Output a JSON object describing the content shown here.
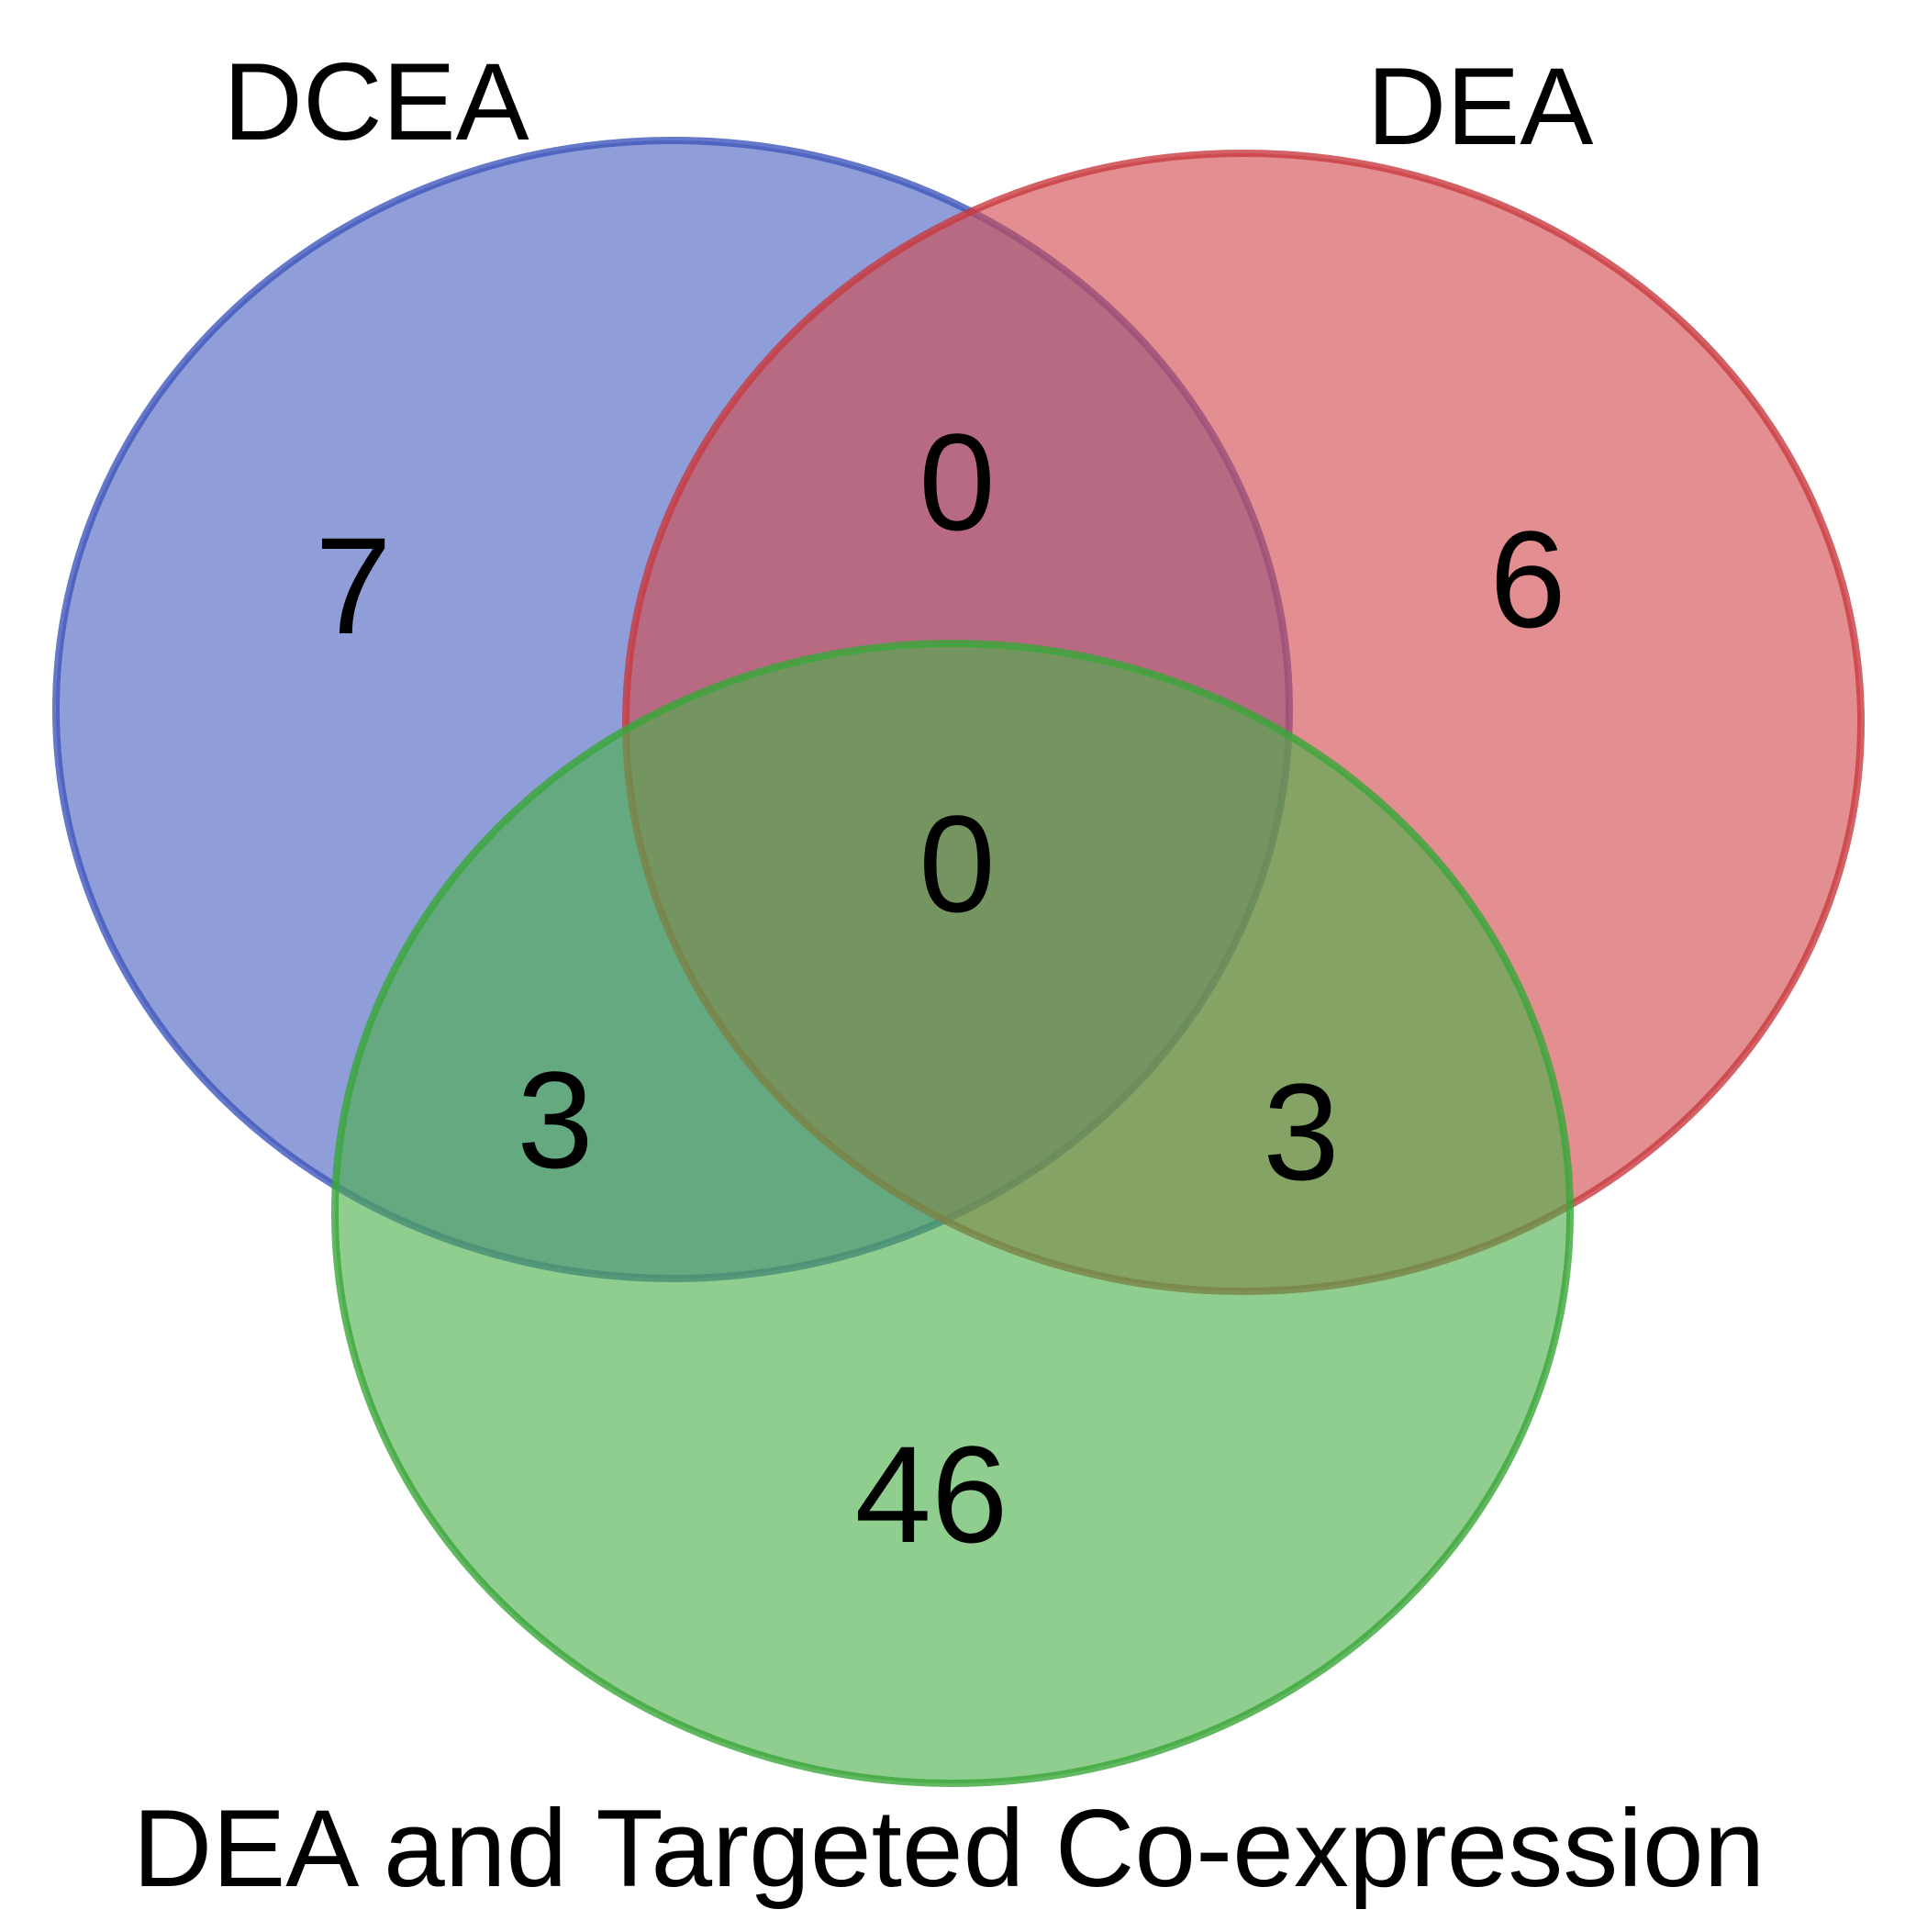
{
  "sets": [
    {
      "key": "dcea",
      "label": "DCEA",
      "color": "#4a62c0"
    },
    {
      "key": "dea",
      "label": "DEA",
      "color": "#d24a4f"
    },
    {
      "key": "dea_tc",
      "label": "DEA and Targeted Co-expression",
      "color": "#4bb04b"
    }
  ],
  "regions": {
    "dcea_only": "7",
    "dea_only": "6",
    "dcea_dea": "0",
    "all_three": "0",
    "dcea_dea_tc": "3",
    "dea_dea_tc": "3",
    "dea_tc_only": "46"
  }
}
